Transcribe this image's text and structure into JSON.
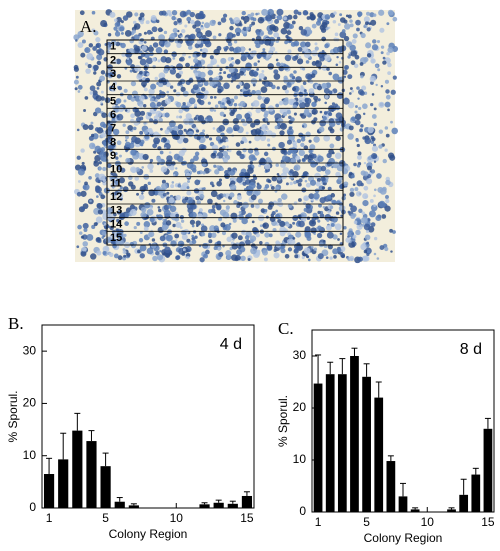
{
  "image_panel": {
    "label": "A.",
    "rows": [
      "1",
      "2",
      "3",
      "4",
      "5",
      "6",
      "7",
      "8",
      "9",
      "10",
      "11",
      "12",
      "13",
      "14",
      "15"
    ]
  },
  "chart_data": [
    {
      "type": "bar",
      "panel_label": "B.",
      "annotation": "4 d",
      "y_label": "% Sporul.",
      "x_label": "Colony Region",
      "x": [
        1,
        2,
        3,
        4,
        5,
        6,
        7,
        8,
        9,
        10,
        11,
        12,
        13,
        14,
        15
      ],
      "values": [
        6.5,
        9.3,
        14.8,
        12.8,
        8,
        1.2,
        0.5,
        0,
        0,
        0,
        0,
        0.7,
        1,
        0.8,
        2.3
      ],
      "errors": [
        3,
        5,
        3.3,
        2,
        2.5,
        0.8,
        0.3,
        0,
        0,
        0,
        0,
        0.3,
        0.5,
        0.5,
        0.8
      ],
      "color": "#000000",
      "xlim": [
        0.5,
        15.5
      ],
      "xticks": [
        1,
        5,
        10,
        15
      ],
      "ylim": [
        0,
        35
      ],
      "yticks": [
        0,
        10,
        20,
        30
      ]
    },
    {
      "type": "bar",
      "panel_label": "C.",
      "annotation": "8 d",
      "y_label": "% Sporul.",
      "x_label": "Colony Region",
      "x": [
        1,
        2,
        3,
        4,
        5,
        6,
        7,
        8,
        9,
        10,
        11,
        12,
        13,
        14,
        15
      ],
      "values": [
        24.7,
        26.5,
        26.5,
        30,
        26,
        22,
        9.8,
        3,
        0.5,
        0,
        0,
        0.5,
        3.3,
        7.2,
        16
      ],
      "errors": [
        5.5,
        2.3,
        3,
        1.5,
        2.5,
        3,
        1,
        2.5,
        0.3,
        0,
        0,
        0.3,
        3,
        1.2,
        2
      ],
      "color": "#000000",
      "xlim": [
        0.5,
        15.5
      ],
      "xticks": [
        1,
        5,
        10,
        15
      ],
      "ylim": [
        0,
        35
      ],
      "yticks": [
        0,
        10,
        20,
        30
      ]
    }
  ]
}
